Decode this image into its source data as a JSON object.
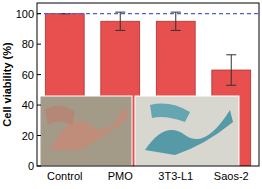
{
  "chart_data": {
    "type": "bar",
    "y_label": "Cell viability (%)",
    "categories": [
      "Control",
      "PMO",
      "3T3-L1",
      "Saos-2"
    ],
    "values": [
      100,
      95,
      95,
      63
    ],
    "errors": [
      0,
      6,
      6,
      10
    ],
    "color": "#e8504f",
    "reference_line": 100,
    "ylim": [
      0,
      107
    ],
    "yticks": [
      0,
      20,
      40,
      60,
      80,
      100
    ]
  }
}
